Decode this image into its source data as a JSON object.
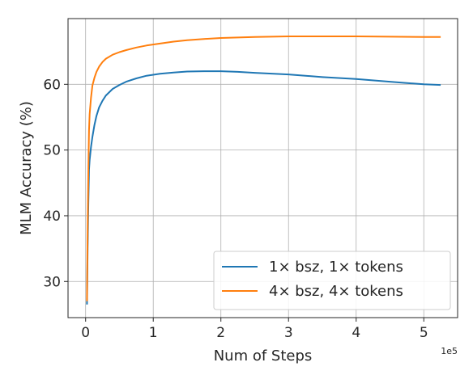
{
  "chart_data": {
    "type": "line",
    "title": "",
    "xlabel": "Num of Steps",
    "ylabel": "MLM Accuracy (%)",
    "x_offset_label": "1e5",
    "xlim": [
      -0.26,
      5.5
    ],
    "ylim": [
      24.5,
      70
    ],
    "xticks": [
      0,
      1,
      2,
      3,
      4,
      5
    ],
    "xtick_labels": [
      "0",
      "1",
      "2",
      "3",
      "4",
      "5"
    ],
    "yticks": [
      30,
      40,
      50,
      60
    ],
    "ytick_labels": [
      "30",
      "40",
      "50",
      "60"
    ],
    "grid": true,
    "legend_position": "lower-right",
    "series": [
      {
        "name": "1× bsz, 1× tokens",
        "color": "#1f77b4",
        "x": [
          0.02,
          0.03,
          0.04,
          0.05,
          0.06,
          0.08,
          0.1,
          0.13,
          0.16,
          0.2,
          0.25,
          0.3,
          0.4,
          0.5,
          0.6,
          0.75,
          0.9,
          1.1,
          1.3,
          1.5,
          1.75,
          2.0,
          2.25,
          2.5,
          3.0,
          3.5,
          4.0,
          4.5,
          5.0,
          5.25
        ],
        "y": [
          26.5,
          35.0,
          42.0,
          47.0,
          48.5,
          50.5,
          52.0,
          53.8,
          55.2,
          56.5,
          57.5,
          58.3,
          59.3,
          59.9,
          60.4,
          60.9,
          61.3,
          61.6,
          61.8,
          61.95,
          62.0,
          62.0,
          61.9,
          61.75,
          61.5,
          61.1,
          60.8,
          60.4,
          60.0,
          59.9
        ]
      },
      {
        "name": "4× bsz, 4× tokens",
        "color": "#ff7f0e",
        "x": [
          0.02,
          0.03,
          0.04,
          0.05,
          0.06,
          0.08,
          0.1,
          0.13,
          0.16,
          0.2,
          0.25,
          0.3,
          0.4,
          0.5,
          0.6,
          0.75,
          0.9,
          1.1,
          1.3,
          1.5,
          1.75,
          2.0,
          2.5,
          3.0,
          3.5,
          4.0,
          4.5,
          5.0,
          5.25
        ],
        "y": [
          27.0,
          38.0,
          47.0,
          53.0,
          55.5,
          58.0,
          59.8,
          61.0,
          61.9,
          62.7,
          63.4,
          63.9,
          64.5,
          64.9,
          65.2,
          65.6,
          65.9,
          66.2,
          66.5,
          66.7,
          66.9,
          67.05,
          67.2,
          67.3,
          67.3,
          67.3,
          67.25,
          67.2,
          67.2
        ]
      }
    ]
  }
}
